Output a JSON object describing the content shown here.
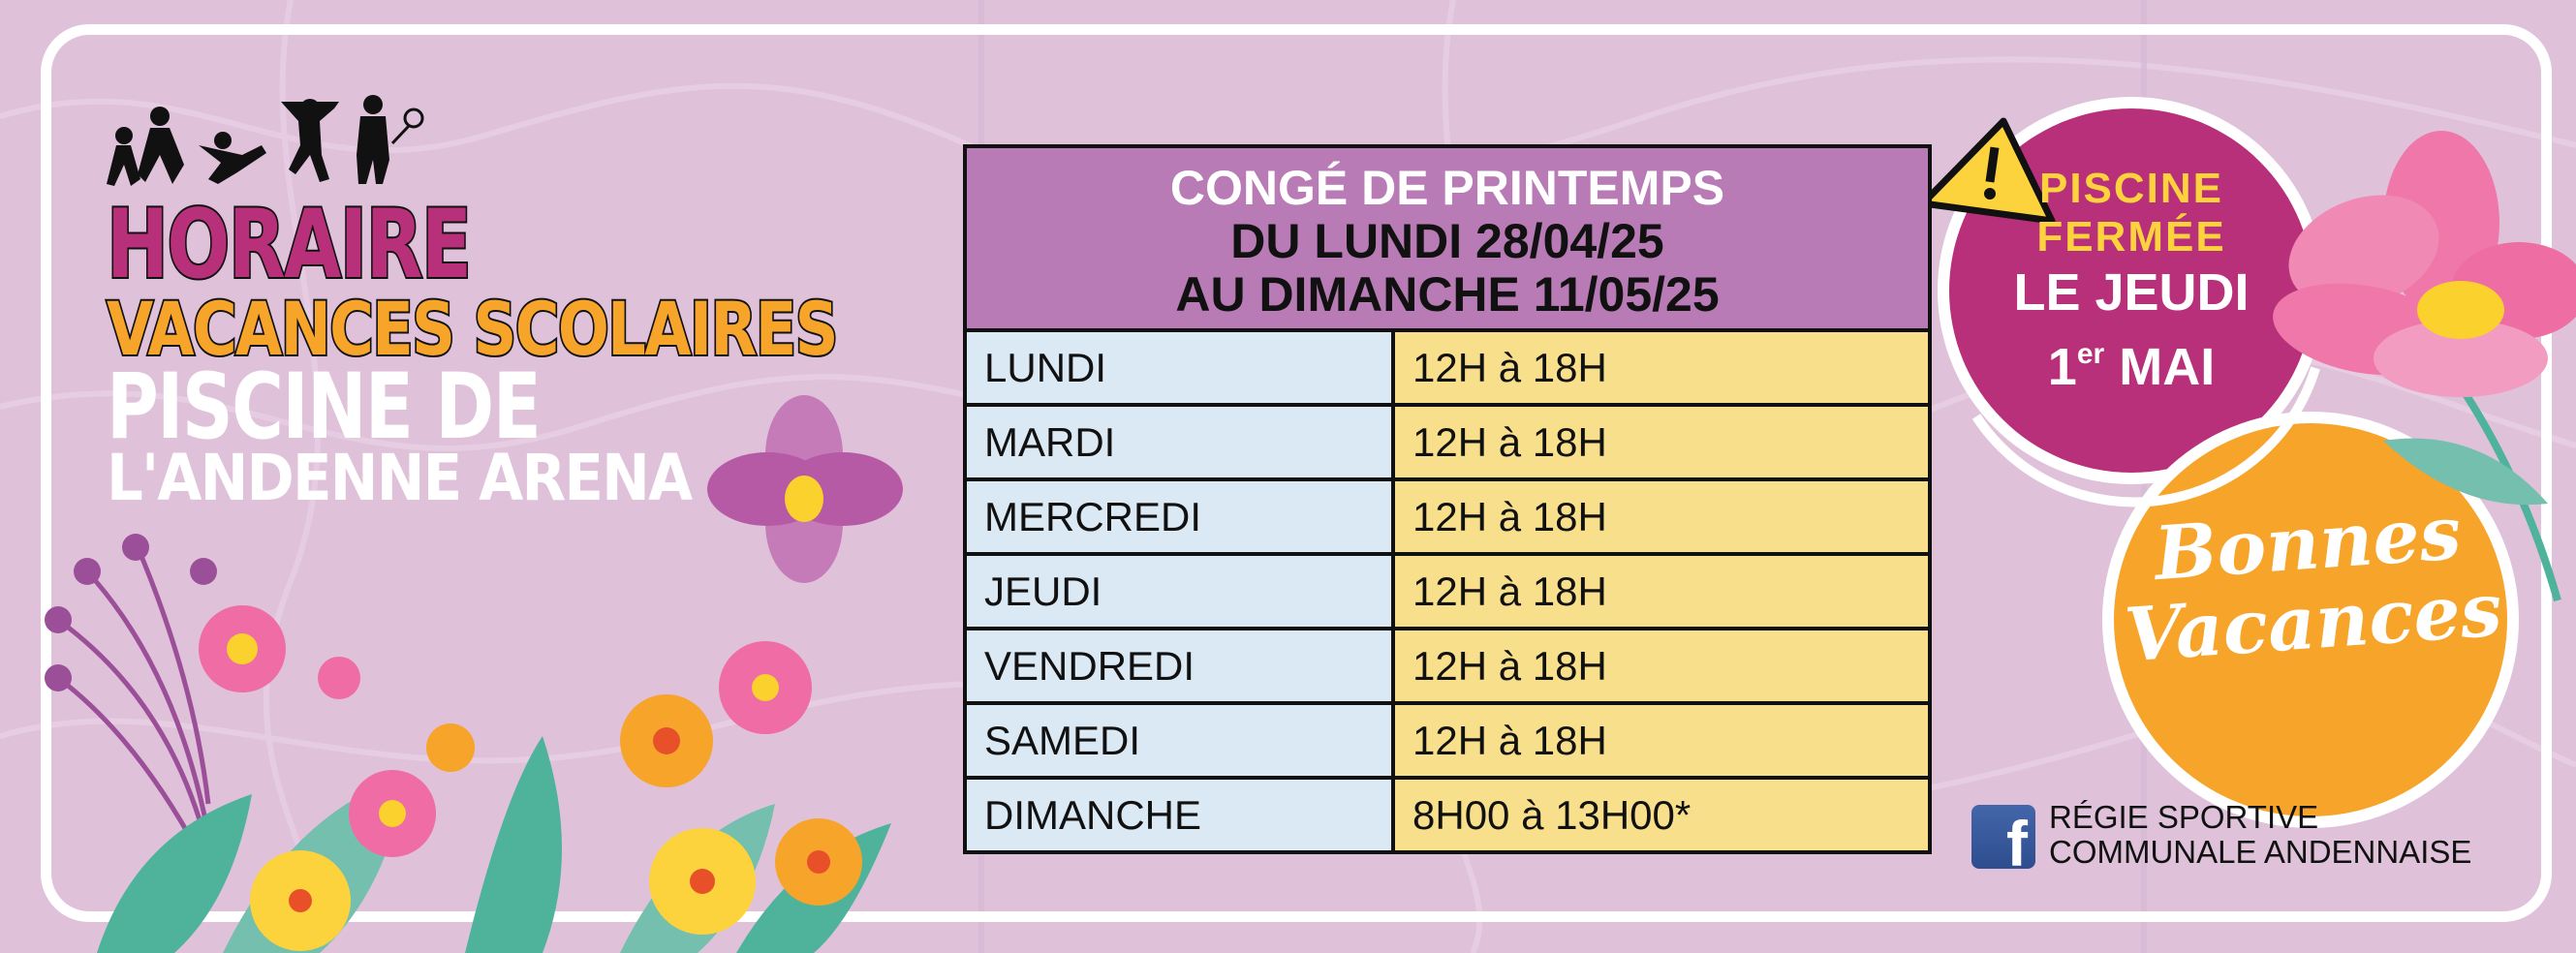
{
  "title": {
    "line1": "HORAIRE",
    "line2": "VACANCES SCOLAIRES",
    "line3": "PISCINE DE",
    "line4": "L'ANDENNE ARENA"
  },
  "schedule": {
    "header": {
      "line1": "CONGÉ DE PRINTEMPS",
      "line2": "DU LUNDI 28/04/25",
      "line3": "AU DIMANCHE 11/05/25"
    },
    "rows": [
      {
        "day": "LUNDI",
        "hours": "12H à 18H"
      },
      {
        "day": "MARDI",
        "hours": "12H à 18H"
      },
      {
        "day": "MERCREDI",
        "hours": "12H à 18H"
      },
      {
        "day": "JEUDI",
        "hours": "12H à 18H"
      },
      {
        "day": "VENDREDI",
        "hours": "12H à 18H"
      },
      {
        "day": "SAMEDI",
        "hours": "12H à 18H"
      },
      {
        "day": "DIMANCHE",
        "hours": "8H00 à 13H00*"
      }
    ]
  },
  "alert": {
    "icon": "warning-icon",
    "line1": "PISCINE",
    "line2": "FERMÉE",
    "line3": "LE JEUDI",
    "day_number": "1",
    "day_suffix": "er",
    "month": "MAI"
  },
  "greeting": {
    "line1": "Bonnes",
    "line2": "Vacances"
  },
  "footer": {
    "icon": "facebook-icon",
    "line1": "RÉGIE SPORTIVE",
    "line2": "COMMUNALE ANDENNAISE"
  },
  "colors": {
    "background": "#dfc2da",
    "header": "#b97bb5",
    "day_cell": "#dbe9f4",
    "hours_cell": "#f8df8b",
    "magenta": "#b8307a",
    "orange": "#f7a42a"
  }
}
